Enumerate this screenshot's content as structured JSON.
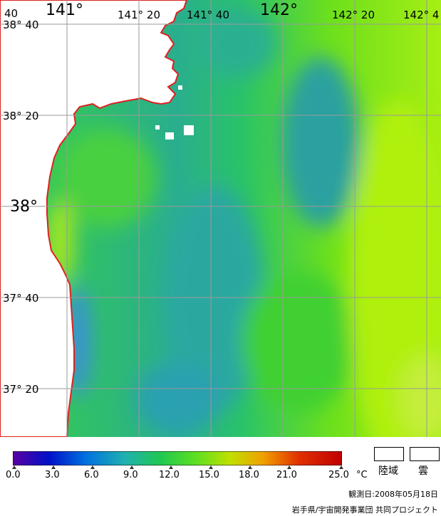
{
  "map": {
    "lon_labels": [
      "40",
      "141°",
      "141° 20",
      "141° 40",
      "142°",
      "142° 20",
      "142° 4"
    ],
    "lat_labels": [
      "38° 40",
      "38° 20",
      "38°",
      "37° 40",
      "37° 20"
    ]
  },
  "legend": {
    "ticks": [
      "0.0",
      "3.0",
      "6.0",
      "9.0",
      "12.0",
      "15.0",
      "18.0",
      "21.0",
      "25.0"
    ],
    "unit": "°C",
    "land_label": "陸域",
    "cloud_label": "雲",
    "colors": [
      "#5a00a0",
      "#0010c8",
      "#0070e0",
      "#20b0b0",
      "#20c850",
      "#60e020",
      "#c0e000",
      "#f0a000",
      "#e03000",
      "#c00000"
    ]
  },
  "footer": {
    "date": "観測日:2008年05月18日",
    "credit": "岩手県/宇宙開発事業団 共同プロジェクト"
  }
}
